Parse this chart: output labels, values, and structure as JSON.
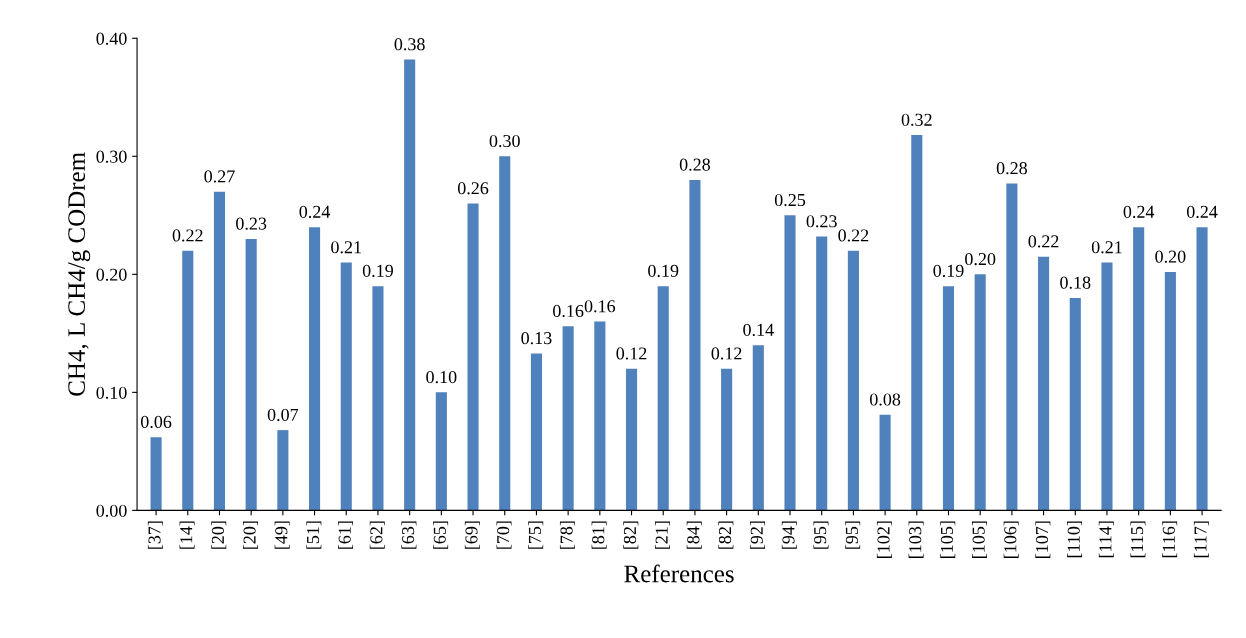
{
  "chart_data": {
    "type": "bar",
    "xlabel": "References",
    "ylabel": "CH4, L CH4/g CODrem",
    "categories": [
      "[37]",
      "[14]",
      "[20]",
      "[20]",
      "[49]",
      "[51]",
      "[61]",
      "[62]",
      "[63]",
      "[65]",
      "[69]",
      "[70]",
      "[75]",
      "[78]",
      "[81]",
      "[82]",
      "[21]",
      "[84]",
      "[82]",
      "[92]",
      "[94]",
      "[95]",
      "[95]",
      "[102]",
      "[103]",
      "[105]",
      "[105]",
      "[106]",
      "[107]",
      "[110]",
      "[114]",
      "[115]",
      "[116]",
      "[117]"
    ],
    "values": [
      0.062,
      0.22,
      0.27,
      0.23,
      0.068,
      0.24,
      0.21,
      0.19,
      0.382,
      0.1,
      0.26,
      0.3,
      0.133,
      0.156,
      0.16,
      0.12,
      0.19,
      0.28,
      0.12,
      0.14,
      0.25,
      0.232,
      0.22,
      0.081,
      0.318,
      0.19,
      0.2,
      0.277,
      0.215,
      0.18,
      0.21,
      0.24,
      0.202,
      0.24
    ],
    "value_labels": [
      "0.06",
      "0.22",
      "0.27",
      "0.23",
      "0.07",
      "0.24",
      "0.21",
      "0.19",
      "0.38",
      "0.10",
      "0.26",
      "0.30",
      "0.13",
      "0.16",
      "0.16",
      "0.12",
      "0.19",
      "0.28",
      "0.12",
      "0.14",
      "0.25",
      "0.23",
      "0.22",
      "0.08",
      "0.32",
      "0.19",
      "0.20",
      "0.28",
      "0.22",
      "0.18",
      "0.21",
      "0.24",
      "0.20",
      "0.24"
    ],
    "color": "#4f81bd",
    "ylim": [
      0,
      0.4
    ],
    "yticks": [
      {
        "value": 0,
        "label": "0.00"
      },
      {
        "value": 0.1,
        "label": "0.10"
      },
      {
        "value": 0.2,
        "label": "0.20"
      },
      {
        "value": 0.3,
        "label": "0.30"
      },
      {
        "value": 0.4,
        "label": "0.40"
      }
    ],
    "grid": false,
    "legend": false
  }
}
